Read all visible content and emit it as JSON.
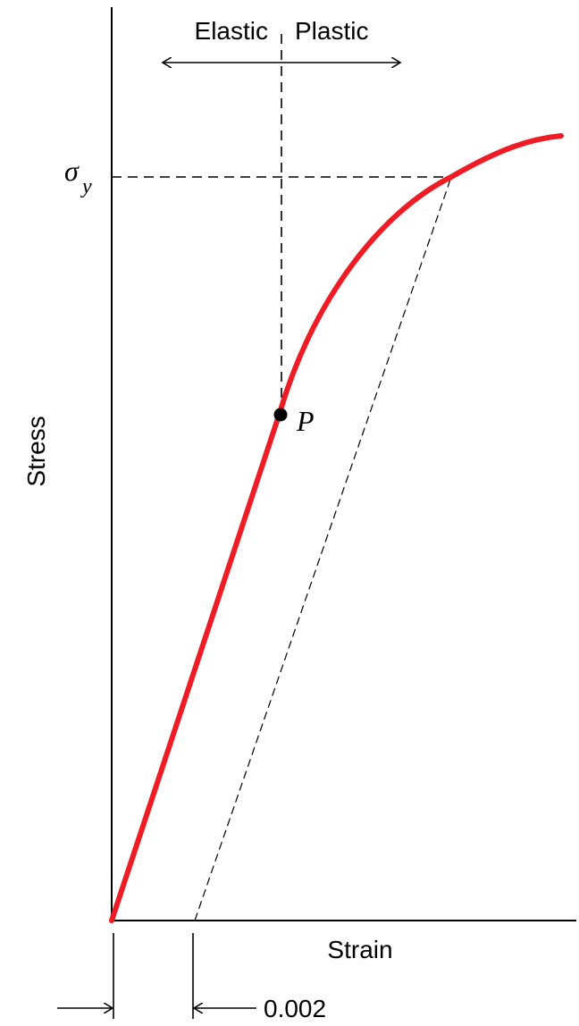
{
  "labels": {
    "elastic": "Elastic",
    "plastic": "Plastic",
    "y_axis": "Stress",
    "x_axis": "Strain",
    "sigma_symbol": "σ",
    "sigma_subscript": "y",
    "point_label": "P",
    "offset_value": "0.002"
  },
  "colors": {
    "curve": "#ee1c25",
    "line": "#000000"
  }
}
